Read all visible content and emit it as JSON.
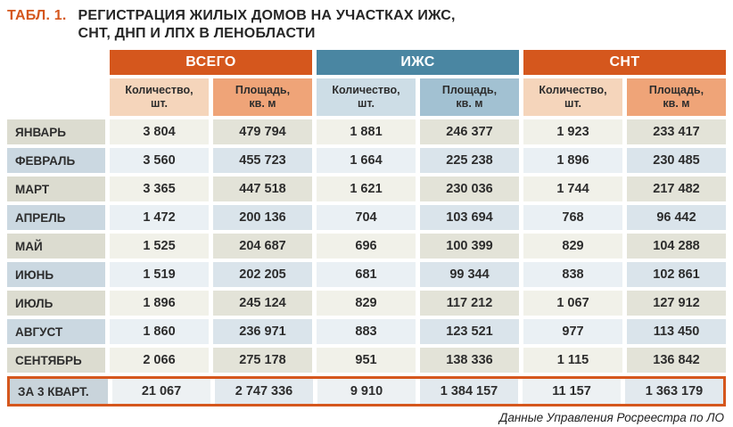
{
  "title": {
    "prefix": "ТАБЛ. 1.",
    "line1": "РЕГИСТРАЦИЯ ЖИЛЫХ ДОМОВ НА УЧАСТКАХ ИЖС,",
    "line2": "СНТ, ДНП И ЛПХ В ЛЕНОБЛАСТИ"
  },
  "colors": {
    "accent_orange": "#d5571d",
    "header_blue": "#4a86a2",
    "subheader_peach_light": "#f5d5bb",
    "subheader_peach_dark": "#efa478",
    "subheader_blue_light": "#cddde6",
    "subheader_blue_mid": "#a2c1d2"
  },
  "chart_data": {
    "type": "table",
    "title": "РЕГИСТРАЦИЯ ЖИЛЫХ ДОМОВ НА УЧАСТКАХ ИЖС, СНТ, ДНП И ЛПХ В ЛЕНОБЛАСТИ",
    "column_groups": [
      {
        "label": "ВСЕГО",
        "theme": "orange"
      },
      {
        "label": "ИЖС",
        "theme": "blue"
      },
      {
        "label": "СНТ",
        "theme": "orange"
      }
    ],
    "subcolumns": [
      {
        "line1": "Количество,",
        "line2": "шт."
      },
      {
        "line1": "Площадь,",
        "line2": "кв. м"
      }
    ],
    "rows": [
      {
        "label": "ЯНВАРЬ",
        "values": [
          3804,
          479794,
          1881,
          246377,
          1923,
          233417
        ]
      },
      {
        "label": "ФЕВРАЛЬ",
        "values": [
          3560,
          455723,
          1664,
          225238,
          1896,
          230485
        ]
      },
      {
        "label": "МАРТ",
        "values": [
          3365,
          447518,
          1621,
          230036,
          1744,
          217482
        ]
      },
      {
        "label": "АПРЕЛЬ",
        "values": [
          1472,
          200136,
          704,
          103694,
          768,
          96442
        ]
      },
      {
        "label": "МАЙ",
        "values": [
          1525,
          204687,
          696,
          100399,
          829,
          104288
        ]
      },
      {
        "label": "ИЮНЬ",
        "values": [
          1519,
          202205,
          681,
          99344,
          838,
          102861
        ]
      },
      {
        "label": "ИЮЛЬ",
        "values": [
          1896,
          245124,
          829,
          117212,
          1067,
          127912
        ]
      },
      {
        "label": "АВГУСТ",
        "values": [
          1860,
          236971,
          883,
          123521,
          977,
          113450
        ]
      },
      {
        "label": "СЕНТЯБРЬ",
        "values": [
          2066,
          275178,
          951,
          138336,
          1115,
          136842
        ]
      }
    ],
    "total_row": {
      "label": "ЗА 3 КВАРТ.",
      "values": [
        21067,
        2747336,
        9910,
        1384157,
        11157,
        1363179
      ]
    }
  },
  "footer": {
    "source": "Данные Управления Росреестра по ЛО"
  }
}
